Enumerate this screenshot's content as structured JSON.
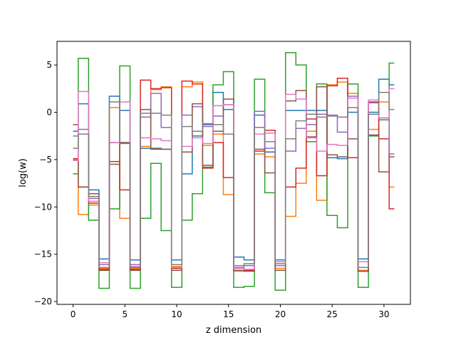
{
  "chart_data": {
    "type": "line",
    "drawstyle": "steps-mid",
    "title": "",
    "xlabel": "z dimension",
    "ylabel": "log(w)",
    "xlim": [
      -1.55,
      32.55
    ],
    "ylim": [
      -20.3,
      7.5
    ],
    "xticks": [
      0,
      5,
      10,
      15,
      20,
      25,
      30
    ],
    "yticks": [
      5,
      0,
      -5,
      -10,
      -15,
      -20
    ],
    "grid": false,
    "legend": "none",
    "x": [
      0,
      1,
      2,
      3,
      4,
      5,
      6,
      7,
      8,
      9,
      10,
      11,
      12,
      13,
      14,
      15,
      16,
      17,
      18,
      19,
      20,
      21,
      22,
      23,
      24,
      25,
      26,
      27,
      28,
      29,
      30,
      31
    ],
    "series": [
      {
        "color": "#1f77b4",
        "values": [
          -2.0,
          0.9,
          -8.2,
          -15.5,
          1.7,
          0.2,
          -15.6,
          -3.8,
          -3.9,
          -3.9,
          -15.6,
          -6.5,
          -2.5,
          -1.3,
          2.1,
          0.3,
          -15.3,
          -15.6,
          -0.3,
          -4.2,
          -15.6,
          0.2,
          0.2,
          0.2,
          0.2,
          -4.8,
          -4.9,
          0.0,
          -15.5,
          0.0,
          3.5,
          2.9
        ]
      },
      {
        "color": "#ff7f0e",
        "values": [
          -5.0,
          -10.8,
          -9.8,
          -16.5,
          0.5,
          -11.2,
          -16.5,
          -3.6,
          2.4,
          2.7,
          -16.3,
          2.7,
          3.2,
          -3.5,
          -2.3,
          -8.7,
          -16.8,
          -16.7,
          -4.4,
          -4.7,
          -16.5,
          -11.0,
          -7.5,
          -2.0,
          -9.3,
          2.9,
          3.2,
          2.0,
          -16.7,
          -1.8,
          1.1,
          -7.9
        ]
      },
      {
        "color": "#2ca02c",
        "values": [
          -6.5,
          5.7,
          -11.4,
          -18.6,
          -10.2,
          4.9,
          -18.6,
          -11.2,
          -5.4,
          -12.5,
          -18.5,
          -11.4,
          -8.6,
          -5.8,
          2.9,
          4.3,
          -18.5,
          -18.4,
          3.5,
          -8.5,
          -18.8,
          6.3,
          5.0,
          -3.1,
          3.0,
          -10.9,
          -12.2,
          3.0,
          -18.5,
          -2.5,
          -0.8,
          5.2
        ]
      },
      {
        "color": "#d62728",
        "values": [
          -4.9,
          -7.9,
          -9.6,
          -16.6,
          -5.2,
          -8.2,
          -16.6,
          3.4,
          2.5,
          2.6,
          -16.5,
          3.3,
          3.0,
          -5.9,
          -3.2,
          -6.9,
          -16.7,
          -16.7,
          -4.1,
          -1.9,
          -16.7,
          -7.9,
          -5.9,
          -0.7,
          -6.7,
          2.8,
          3.6,
          -4.8,
          -16.8,
          1.1,
          -2.8,
          -10.2
        ]
      },
      {
        "color": "#9467bd",
        "values": [
          -2.5,
          -1.8,
          -9.1,
          -16.1,
          -3.2,
          -3.2,
          -16.1,
          -0.5,
          2.0,
          -1.6,
          -16.1,
          -0.3,
          0.6,
          -1.5,
          -0.4,
          0.8,
          -16.4,
          -16.2,
          0.1,
          -3.8,
          -16.2,
          -4.1,
          -1.7,
          -1.3,
          -0.2,
          -0.3,
          -2.1,
          1.7,
          -15.8,
          1.0,
          -0.6,
          -4.4
        ]
      },
      {
        "color": "#8c564b",
        "values": [
          -1.3,
          -7.9,
          -8.6,
          -16.7,
          -5.5,
          -3.2,
          -16.7,
          0.3,
          -3.8,
          -3.9,
          -16.7,
          -4.2,
          0.9,
          -5.6,
          -2.0,
          1.4,
          -16.7,
          -16.8,
          -3.9,
          -6.4,
          -16.7,
          1.2,
          2.3,
          -2.6,
          2.7,
          -4.5,
          -4.7,
          -2.8,
          -16.8,
          -2.4,
          -6.3,
          -4.7
        ]
      },
      {
        "color": "#e377c2",
        "values": [
          -5.1,
          2.2,
          -9.4,
          -15.9,
          -3.2,
          1.1,
          -16.3,
          -2.7,
          -2.8,
          -3.0,
          -16.4,
          -3.6,
          -2.7,
          -3.3,
          0.7,
          0.8,
          -16.5,
          -16.6,
          -2.3,
          -2.2,
          -15.8,
          1.9,
          1.4,
          -2.7,
          -4.1,
          -3.4,
          -3.5,
          1.5,
          -15.8,
          1.3,
          -0.6,
          2.5
        ]
      },
      {
        "color": "#7f7f7f",
        "values": [
          -3.8,
          -2.3,
          -8.9,
          -16.4,
          1.1,
          -3.3,
          -16.4,
          -0.1,
          -0.1,
          -0.3,
          -16.1,
          -1.5,
          -2.0,
          -1.2,
          -1.3,
          -2.3,
          -16.2,
          -16.0,
          -1.6,
          -3.1,
          -16.0,
          -2.8,
          -0.9,
          -0.2,
          -0.5,
          -0.4,
          -0.5,
          0.5,
          -16.4,
          -0.2,
          2.1,
          0.3
        ]
      }
    ]
  }
}
